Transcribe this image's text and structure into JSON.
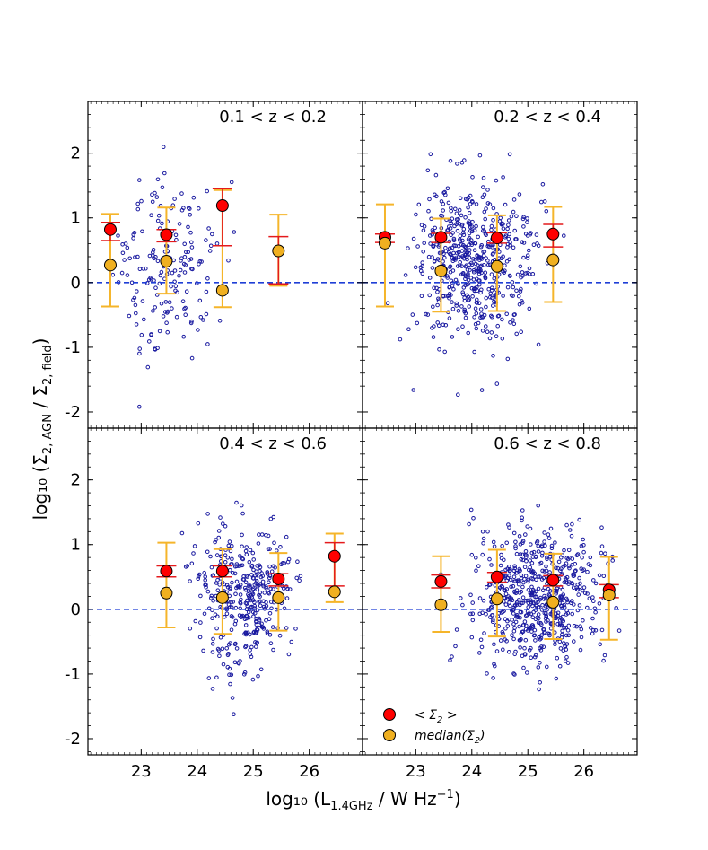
{
  "chart_data": {
    "type": "scatter",
    "xlabel": "log₁₀ (L",
    "xlabel_sub": "1.4GHz",
    "xlabel_tail": " / W Hz",
    "xlabel_sup": "−1",
    "xlabel_close": ")",
    "ylabel": "log₁₀ (Σ",
    "ylabel_sub1": "2, AGN",
    "ylabel_mid": " / Σ",
    "ylabel_sub2": "2, field",
    "ylabel_close": ")",
    "xlim": [
      22.05,
      26.95
    ],
    "ylim": [
      -2.25,
      2.8
    ],
    "xticks": [
      "23",
      "24",
      "25",
      "26"
    ],
    "xtick_values": [
      23,
      24,
      25,
      26
    ],
    "yticks": [
      "2",
      "1",
      "0",
      "-1",
      "-2"
    ],
    "ytick_values": [
      2,
      1,
      0,
      -1,
      -2
    ],
    "reference_line_y": 0,
    "colors": {
      "scatter": "#1a1aa0",
      "mean": "#ff0000",
      "mean_err": "#e41a1c",
      "median": "#f0b020",
      "median_err": "#f5b52a",
      "dashed_line": "#1f3fd6"
    },
    "legend": {
      "placement": "lower-left",
      "mean_prefix": "< Σ",
      "mean_sub": "2",
      "mean_suffix": " >",
      "median_prefix": "median(Σ",
      "median_sub": "2",
      "median_suffix": ")"
    },
    "panels": [
      {
        "title": "0.1  <  z  <  0.2",
        "mean": [
          {
            "x": 22.45,
            "y": 0.82,
            "lo": 0.65,
            "hi": 0.93
          },
          {
            "x": 23.45,
            "y": 0.74,
            "lo": 0.63,
            "hi": 0.82
          },
          {
            "x": 24.45,
            "y": 1.19,
            "lo": 0.57,
            "hi": 1.45
          },
          {
            "x": 25.45,
            "y": null,
            "lo": -0.02,
            "hi": 0.71
          }
        ],
        "median": [
          {
            "x": 22.45,
            "y": 0.27,
            "lo": -0.37,
            "hi": 1.06
          },
          {
            "x": 23.45,
            "y": 0.33,
            "lo": -0.17,
            "hi": 1.16
          },
          {
            "x": 24.45,
            "y": -0.12,
            "lo": -0.38,
            "hi": 1.43
          },
          {
            "x": 25.45,
            "y": 0.49,
            "lo": -0.05,
            "hi": 1.05
          }
        ],
        "scatter": {
          "n": 180,
          "xmin": 22.1,
          "xmax": 24.9,
          "ymean": 0.25,
          "ysd": 0.62
        }
      },
      {
        "title": "0.2  <  z  <  0.4",
        "mean": [
          {
            "x": 22.45,
            "y": 0.7,
            "lo": 0.62,
            "hi": 0.75
          },
          {
            "x": 23.45,
            "y": 0.7,
            "lo": 0.62,
            "hi": 0.76
          },
          {
            "x": 24.45,
            "y": 0.69,
            "lo": 0.61,
            "hi": 0.77
          },
          {
            "x": 25.45,
            "y": 0.75,
            "lo": 0.55,
            "hi": 0.9
          }
        ],
        "median": [
          {
            "x": 22.45,
            "y": 0.61,
            "lo": -0.37,
            "hi": 1.21
          },
          {
            "x": 23.45,
            "y": 0.18,
            "lo": -0.45,
            "hi": 0.99
          },
          {
            "x": 24.45,
            "y": 0.25,
            "lo": -0.44,
            "hi": 1.04
          },
          {
            "x": 25.45,
            "y": 0.35,
            "lo": -0.3,
            "hi": 1.17
          }
        ],
        "scatter": {
          "n": 560,
          "xmin": 22.35,
          "xmax": 25.75,
          "ymean": 0.3,
          "ysd": 0.62
        }
      },
      {
        "title": "0.4  <  z  <  0.6",
        "mean": [
          {
            "x": 23.45,
            "y": 0.59,
            "lo": 0.5,
            "hi": 0.67
          },
          {
            "x": 24.45,
            "y": 0.59,
            "lo": 0.5,
            "hi": 0.67
          },
          {
            "x": 25.45,
            "y": 0.47,
            "lo": 0.36,
            "hi": 0.55
          },
          {
            "x": 26.45,
            "y": 0.82,
            "lo": 0.36,
            "hi": 1.03
          }
        ],
        "median": [
          {
            "x": 23.45,
            "y": 0.25,
            "lo": -0.28,
            "hi": 1.03
          },
          {
            "x": 24.45,
            "y": 0.18,
            "lo": -0.38,
            "hi": 0.93
          },
          {
            "x": 25.45,
            "y": 0.18,
            "lo": -0.33,
            "hi": 0.87
          },
          {
            "x": 26.45,
            "y": 0.27,
            "lo": 0.11,
            "hi": 1.17
          }
        ],
        "scatter": {
          "n": 380,
          "xmin": 23.45,
          "xmax": 26.2,
          "ymean": 0.2,
          "ysd": 0.55
        }
      },
      {
        "title": "0.6  <  z  <  0.8",
        "mean": [
          {
            "x": 23.45,
            "y": 0.43,
            "lo": 0.33,
            "hi": 0.53
          },
          {
            "x": 24.45,
            "y": 0.5,
            "lo": 0.42,
            "hi": 0.57
          },
          {
            "x": 25.45,
            "y": 0.45,
            "lo": 0.36,
            "hi": 0.52
          },
          {
            "x": 26.45,
            "y": 0.3,
            "lo": 0.18,
            "hi": 0.38
          }
        ],
        "median": [
          {
            "x": 23.45,
            "y": 0.07,
            "lo": -0.35,
            "hi": 0.82
          },
          {
            "x": 24.45,
            "y": 0.16,
            "lo": -0.42,
            "hi": 0.92
          },
          {
            "x": 25.45,
            "y": 0.11,
            "lo": -0.46,
            "hi": 0.86
          },
          {
            "x": 26.45,
            "y": 0.22,
            "lo": -0.47,
            "hi": 0.81
          }
        ],
        "scatter": {
          "n": 620,
          "xmin": 23.3,
          "xmax": 26.95,
          "ymean": 0.15,
          "ysd": 0.52
        }
      }
    ]
  }
}
